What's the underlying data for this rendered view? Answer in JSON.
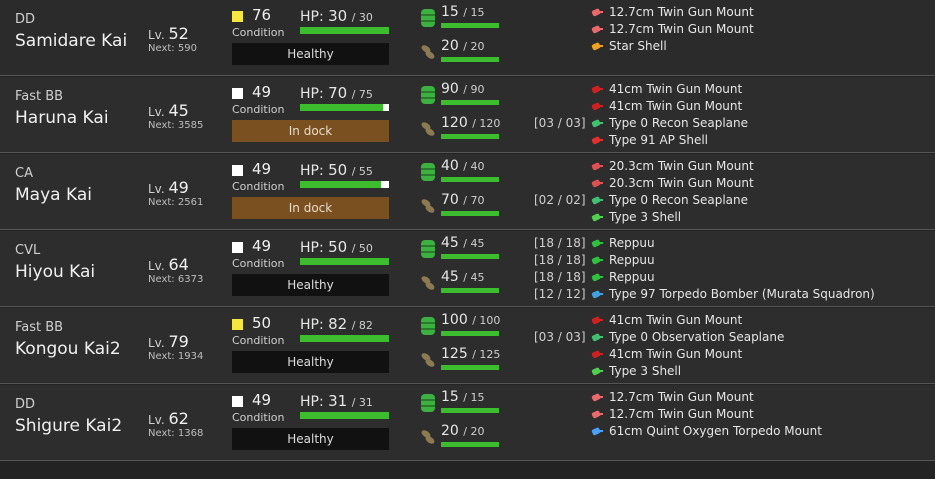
{
  "ships": [
    {
      "type": "DD",
      "name": "Samidare Kai",
      "level_label": "Lv.",
      "level": "52",
      "next_label": "Next:",
      "next": "590",
      "condition": "76",
      "condition_label": "Condition",
      "condition_color": "#f5e642",
      "status": "Healthy",
      "status_kind": "healthy",
      "hp_label": "HP:",
      "hp_cur": "30",
      "hp_max": "30",
      "hp_fraction": 1.0,
      "fuel": "15",
      "fuel_max": "15",
      "ammo": "20",
      "ammo_max": "20",
      "equipment": [
        {
          "slot": "",
          "icon": "small-gun-icon",
          "name": "12.7cm Twin Gun Mount"
        },
        {
          "slot": "",
          "icon": "small-gun-icon",
          "name": "12.7cm Twin Gun Mount"
        },
        {
          "slot": "",
          "icon": "star-shell-icon",
          "name": "Star Shell"
        }
      ]
    },
    {
      "type": "Fast BB",
      "name": "Haruna Kai",
      "level_label": "Lv.",
      "level": "45",
      "next_label": "Next:",
      "next": "3585",
      "condition": "49",
      "condition_label": "Condition",
      "condition_color": "#ffffff",
      "status": "In dock",
      "status_kind": "dock",
      "hp_label": "HP:",
      "hp_cur": "70",
      "hp_max": "75",
      "hp_fraction": 0.933,
      "fuel": "90",
      "fuel_max": "90",
      "ammo": "120",
      "ammo_max": "120",
      "equipment": [
        {
          "slot": "",
          "icon": "large-gun-icon",
          "name": "41cm Twin Gun Mount"
        },
        {
          "slot": "",
          "icon": "large-gun-icon",
          "name": "41cm Twin Gun Mount"
        },
        {
          "slot": "[03 / 03]",
          "icon": "seaplane-icon",
          "name": "Type 0 Recon Seaplane"
        },
        {
          "slot": "",
          "icon": "ap-shell-icon",
          "name": "Type 91 AP Shell"
        }
      ]
    },
    {
      "type": "CA",
      "name": "Maya Kai",
      "level_label": "Lv.",
      "level": "49",
      "next_label": "Next:",
      "next": "2561",
      "condition": "49",
      "condition_label": "Condition",
      "condition_color": "#ffffff",
      "status": "In dock",
      "status_kind": "dock",
      "hp_label": "HP:",
      "hp_cur": "50",
      "hp_max": "55",
      "hp_fraction": 0.909,
      "fuel": "40",
      "fuel_max": "40",
      "ammo": "70",
      "ammo_max": "70",
      "equipment": [
        {
          "slot": "",
          "icon": "medium-gun-icon",
          "name": "20.3cm Twin Gun Mount"
        },
        {
          "slot": "",
          "icon": "medium-gun-icon",
          "name": "20.3cm Twin Gun Mount"
        },
        {
          "slot": "[02 / 02]",
          "icon": "seaplane-icon",
          "name": "Type 0 Recon Seaplane"
        },
        {
          "slot": "",
          "icon": "aa-shell-icon",
          "name": "Type 3 Shell"
        }
      ]
    },
    {
      "type": "CVL",
      "name": "Hiyou Kai",
      "level_label": "Lv.",
      "level": "64",
      "next_label": "Next:",
      "next": "6373",
      "condition": "49",
      "condition_label": "Condition",
      "condition_color": "#ffffff",
      "status": "Healthy",
      "status_kind": "healthy",
      "hp_label": "HP:",
      "hp_cur": "50",
      "hp_max": "50",
      "hp_fraction": 1.0,
      "fuel": "45",
      "fuel_max": "45",
      "ammo": "45",
      "ammo_max": "45",
      "equipment": [
        {
          "slot": "[18 / 18]",
          "icon": "fighter-icon",
          "name": "Reppuu"
        },
        {
          "slot": "[18 / 18]",
          "icon": "fighter-icon",
          "name": "Reppuu"
        },
        {
          "slot": "[18 / 18]",
          "icon": "fighter-icon",
          "name": "Reppuu"
        },
        {
          "slot": "[12 / 12]",
          "icon": "torpedo-bomber-icon",
          "name": "Type 97 Torpedo Bomber (Murata Squadron)"
        }
      ]
    },
    {
      "type": "Fast BB",
      "name": "Kongou Kai2",
      "level_label": "Lv.",
      "level": "79",
      "next_label": "Next:",
      "next": "1934",
      "condition": "50",
      "condition_label": "Condition",
      "condition_color": "#f5e642",
      "status": "Healthy",
      "status_kind": "healthy",
      "hp_label": "HP:",
      "hp_cur": "82",
      "hp_max": "82",
      "hp_fraction": 1.0,
      "fuel": "100",
      "fuel_max": "100",
      "ammo": "125",
      "ammo_max": "125",
      "equipment": [
        {
          "slot": "",
          "icon": "large-gun-icon",
          "name": "41cm Twin Gun Mount"
        },
        {
          "slot": "[03 / 03]",
          "icon": "seaplane-icon",
          "name": "Type 0 Observation Seaplane"
        },
        {
          "slot": "",
          "icon": "large-gun-icon",
          "name": "41cm Twin Gun Mount"
        },
        {
          "slot": "",
          "icon": "aa-shell-icon",
          "name": "Type 3 Shell"
        }
      ]
    },
    {
      "type": "DD",
      "name": "Shigure Kai2",
      "level_label": "Lv.",
      "level": "62",
      "next_label": "Next:",
      "next": "1368",
      "condition": "49",
      "condition_label": "Condition",
      "condition_color": "#ffffff",
      "status": "Healthy",
      "status_kind": "healthy",
      "hp_label": "HP:",
      "hp_cur": "31",
      "hp_max": "31",
      "hp_fraction": 1.0,
      "fuel": "15",
      "fuel_max": "15",
      "ammo": "20",
      "ammo_max": "20",
      "equipment": [
        {
          "slot": "",
          "icon": "small-gun-icon",
          "name": "12.7cm Twin Gun Mount"
        },
        {
          "slot": "",
          "icon": "small-gun-icon",
          "name": "12.7cm Twin Gun Mount"
        },
        {
          "slot": "",
          "icon": "torpedo-icon",
          "name": "61cm Quint Oxygen Torpedo Mount"
        }
      ]
    }
  ],
  "colors": {
    "bar_green": "#3dbd2d",
    "dock_brown": "#7a5020",
    "small-gun-icon": "#e86a6a",
    "medium-gun-icon": "#e05050",
    "large-gun-icon": "#d02020",
    "star-shell-icon": "#f0a020",
    "seaplane-icon": "#40c070",
    "ap-shell-icon": "#e03030",
    "aa-shell-icon": "#50d050",
    "fighter-icon": "#30c040",
    "torpedo-bomber-icon": "#40a0e0",
    "torpedo-icon": "#4aa0ff"
  }
}
